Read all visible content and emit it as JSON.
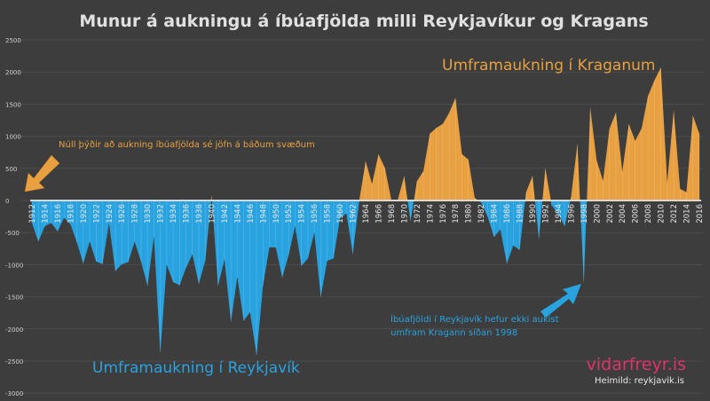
{
  "chart_data": {
    "type": "area",
    "title": "Munur á aukningu á íbúafjölda milli Reykjavíkur og Kragans",
    "xlabel": "",
    "ylabel": "",
    "ylim": [
      -3000,
      2500
    ],
    "yticks": [
      2500,
      2000,
      1500,
      1000,
      500,
      0,
      -500,
      -1000,
      -1500,
      -2000,
      -2500,
      -3000
    ],
    "grid": true,
    "x": [
      1912,
      1913,
      1914,
      1915,
      1916,
      1917,
      1918,
      1919,
      1920,
      1921,
      1922,
      1923,
      1924,
      1925,
      1926,
      1927,
      1928,
      1929,
      1930,
      1931,
      1932,
      1933,
      1934,
      1935,
      1936,
      1937,
      1938,
      1939,
      1940,
      1941,
      1942,
      1943,
      1944,
      1945,
      1946,
      1947,
      1948,
      1949,
      1950,
      1951,
      1952,
      1953,
      1954,
      1955,
      1956,
      1957,
      1958,
      1959,
      1960,
      1961,
      1962,
      1963,
      1964,
      1965,
      1966,
      1967,
      1968,
      1969,
      1970,
      1971,
      1972,
      1973,
      1974,
      1975,
      1976,
      1977,
      1978,
      1979,
      1980,
      1981,
      1982,
      1983,
      1984,
      1985,
      1986,
      1987,
      1988,
      1989,
      1990,
      1991,
      1992,
      1993,
      1994,
      1995,
      1996,
      1997,
      1998,
      1999,
      2000,
      2001,
      2002,
      2003,
      2004,
      2005,
      2006,
      2007,
      2008,
      2009,
      2010,
      2011,
      2012,
      2013,
      2014,
      2015,
      2016
    ],
    "values": [
      -350,
      -640,
      -400,
      -350,
      -480,
      -270,
      -370,
      -650,
      -980,
      -640,
      -950,
      -990,
      -350,
      -1100,
      -990,
      -960,
      -640,
      -950,
      -1330,
      -560,
      -2370,
      -1000,
      -1270,
      -1320,
      -1050,
      -840,
      -1300,
      -940,
      70,
      -1330,
      -920,
      -1890,
      -1190,
      -1870,
      -1740,
      -2410,
      -1330,
      -730,
      -730,
      -1200,
      -850,
      -400,
      -1020,
      -900,
      -500,
      -1500,
      -940,
      -900,
      -280,
      -200,
      -830,
      0,
      610,
      260,
      720,
      510,
      10,
      10,
      380,
      -320,
      300,
      460,
      1040,
      1130,
      1190,
      1360,
      1600,
      720,
      640,
      40,
      -30,
      -250,
      -570,
      -450,
      -980,
      -700,
      -770,
      130,
      380,
      -600,
      500,
      -80,
      -200,
      -400,
      50,
      880,
      -1280,
      1440,
      620,
      310,
      1120,
      1370,
      450,
      1190,
      930,
      1120,
      1630,
      1870,
      2070,
      280,
      1400,
      180,
      130,
      1320,
      1040
    ],
    "xtick_labels": [
      "1912",
      "1914",
      "1916",
      "1918",
      "1920",
      "1922",
      "1924",
      "1926",
      "1928",
      "1930",
      "1932",
      "1934",
      "1936",
      "1938",
      "1940",
      "1942",
      "1944",
      "1946",
      "1948",
      "1950",
      "1952",
      "1954",
      "1956",
      "1958",
      "1960",
      "1962",
      "1964",
      "1966",
      "1968",
      "1970",
      "1972",
      "1974",
      "1976",
      "1978",
      "1980",
      "1982",
      "1984",
      "1986",
      "1988",
      "1990",
      "1992",
      "1994",
      "1996",
      "1998",
      "2000",
      "2002",
      "2004",
      "2006",
      "2008",
      "2010",
      "2012",
      "2014",
      "2016"
    ],
    "colors": {
      "positive": "#e8a040",
      "negative": "#29a3e0",
      "background": "#3d3d3d",
      "grid": "#4d4d4d"
    },
    "annotations": {
      "kraginn": "Umframaukning í Kraganum",
      "reykjavik": "Umframaukning í Reykjavík",
      "zero_note": "Núll þýðir að aukning íbúafjölda sé jöfn á báðum svæðum",
      "since_1998_line1": "Íbúafjöldi í Reykjavík hefur ekki aukist",
      "since_1998_line2": "umfram Kragann síðan 1998"
    },
    "watermark": "vidarfreyr.is",
    "source": "Heimild: reykjavik.is"
  }
}
